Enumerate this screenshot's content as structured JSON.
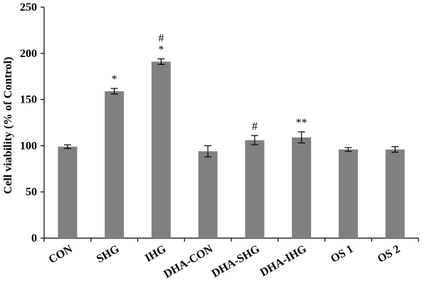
{
  "chart_data": {
    "type": "bar",
    "title": "",
    "xlabel": "",
    "ylabel": "Cell viability (% of Control)",
    "ylim": [
      0,
      250
    ],
    "yticks": [
      0,
      50,
      100,
      150,
      200,
      250
    ],
    "grid": false,
    "bar_color": "#808080",
    "categories": [
      "CON",
      "SHG",
      "IHG",
      "DHA-CON",
      "DHA-SHG",
      "DHA-IHG",
      "OS 1",
      "OS 2"
    ],
    "values": [
      99,
      159,
      191,
      94,
      106,
      109,
      96,
      96
    ],
    "errors": [
      2,
      3,
      3,
      6,
      5,
      6,
      2,
      3
    ],
    "annotations": [
      {
        "category": "SHG",
        "lines": [
          "*"
        ]
      },
      {
        "category": "IHG",
        "lines": [
          "#",
          "*"
        ]
      },
      {
        "category": "DHA-SHG",
        "lines": [
          "#"
        ]
      },
      {
        "category": "DHA-IHG",
        "lines": [
          "**"
        ]
      }
    ]
  }
}
